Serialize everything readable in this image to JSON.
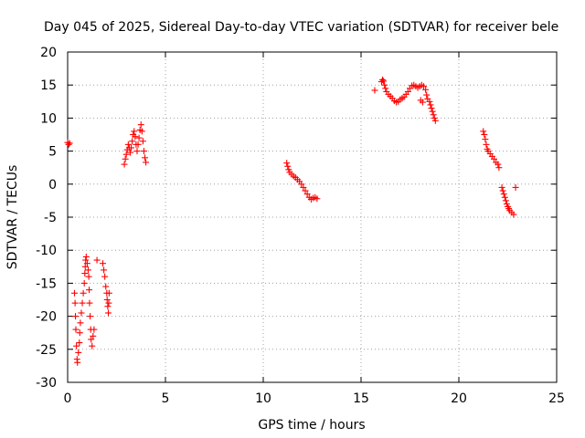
{
  "chart_data": {
    "type": "scatter",
    "title": "Day 045 of 2025, Sidereal Day-to-day VTEC variation (SDTVAR) for receiver bele",
    "xlabel": "GPS time / hours",
    "ylabel": "SDTVAR / TECUs",
    "xlim": [
      0,
      25
    ],
    "ylim": [
      -30,
      20
    ],
    "xticks": [
      0,
      5,
      10,
      15,
      20,
      25
    ],
    "yticks": [
      -30,
      -25,
      -20,
      -15,
      -10,
      -5,
      0,
      5,
      10,
      15,
      20
    ],
    "grid": true,
    "marker": "plus",
    "color": "#ff0000",
    "segments": [
      {
        "name": "seg-00h",
        "points": [
          [
            0.0,
            6.3
          ],
          [
            0.05,
            6.0
          ],
          [
            0.1,
            6.2
          ]
        ]
      },
      {
        "name": "seg-00h-02h",
        "points": [
          [
            0.35,
            -16.5
          ],
          [
            0.38,
            -18.0
          ],
          [
            0.4,
            -20.0
          ],
          [
            0.42,
            -22.0
          ],
          [
            0.45,
            -24.5
          ],
          [
            0.48,
            -26.5
          ],
          [
            0.5,
            -27.0
          ],
          [
            0.55,
            -25.5
          ],
          [
            0.6,
            -24.0
          ],
          [
            0.62,
            -22.5
          ],
          [
            0.65,
            -21.0
          ],
          [
            0.7,
            -19.5
          ],
          [
            0.75,
            -18.0
          ],
          [
            0.8,
            -16.5
          ],
          [
            0.85,
            -15.0
          ],
          [
            0.88,
            -13.5
          ],
          [
            0.9,
            -12.5
          ],
          [
            0.92,
            -11.5
          ],
          [
            0.95,
            -11.0
          ],
          [
            1.0,
            -12.0
          ],
          [
            1.05,
            -13.0
          ],
          [
            1.08,
            -14.0
          ],
          [
            1.1,
            -16.0
          ],
          [
            1.12,
            -18.0
          ],
          [
            1.15,
            -20.0
          ],
          [
            1.18,
            -22.0
          ],
          [
            1.2,
            -23.5
          ],
          [
            1.25,
            -24.5
          ],
          [
            1.3,
            -23.0
          ],
          [
            1.35,
            -22.0
          ],
          [
            1.5,
            -11.5
          ],
          [
            1.8,
            -12.0
          ],
          [
            1.85,
            -13.0
          ],
          [
            1.9,
            -14.0
          ],
          [
            1.95,
            -15.5
          ],
          [
            2.0,
            -16.5
          ],
          [
            2.02,
            -17.5
          ],
          [
            2.05,
            -18.5
          ],
          [
            2.08,
            -19.5
          ],
          [
            2.1,
            -18.0
          ],
          [
            2.12,
            -16.5
          ]
        ]
      },
      {
        "name": "seg-03h",
        "points": [
          [
            2.9,
            3.0
          ],
          [
            2.95,
            3.8
          ],
          [
            3.0,
            4.5
          ],
          [
            3.05,
            5.2
          ],
          [
            3.1,
            6.0
          ],
          [
            3.15,
            5.5
          ],
          [
            3.2,
            4.8
          ],
          [
            3.25,
            5.5
          ],
          [
            3.3,
            6.5
          ],
          [
            3.35,
            7.5
          ],
          [
            3.4,
            8.0
          ],
          [
            3.45,
            7.2
          ],
          [
            3.5,
            6.0
          ],
          [
            3.55,
            5.0
          ],
          [
            3.6,
            6.0
          ],
          [
            3.65,
            7.0
          ],
          [
            3.7,
            8.2
          ],
          [
            3.75,
            9.0
          ],
          [
            3.8,
            8.0
          ],
          [
            3.85,
            6.5
          ],
          [
            3.9,
            5.0
          ],
          [
            3.95,
            4.0
          ],
          [
            4.0,
            3.3
          ]
        ]
      },
      {
        "name": "seg-11h",
        "points": [
          [
            11.2,
            3.2
          ],
          [
            11.25,
            2.7
          ],
          [
            11.3,
            2.2
          ],
          [
            11.35,
            1.8
          ],
          [
            11.45,
            1.5
          ],
          [
            11.55,
            1.2
          ],
          [
            11.65,
            1.0
          ],
          [
            11.75,
            0.7
          ],
          [
            11.85,
            0.4
          ],
          [
            11.95,
            0.0
          ],
          [
            12.05,
            -0.5
          ],
          [
            12.15,
            -1.0
          ],
          [
            12.25,
            -1.5
          ],
          [
            12.35,
            -2.0
          ],
          [
            12.45,
            -2.3
          ],
          [
            12.55,
            -2.1
          ],
          [
            12.65,
            -2.0
          ],
          [
            12.75,
            -2.2
          ]
        ]
      },
      {
        "name": "seg-16h-19h",
        "points": [
          [
            15.7,
            14.2
          ],
          [
            16.05,
            15.5
          ],
          [
            16.1,
            15.8
          ],
          [
            16.15,
            15.6
          ],
          [
            16.2,
            15.0
          ],
          [
            16.25,
            14.5
          ],
          [
            16.3,
            14.0
          ],
          [
            16.4,
            13.6
          ],
          [
            16.5,
            13.3
          ],
          [
            16.6,
            13.0
          ],
          [
            16.7,
            12.6
          ],
          [
            16.8,
            12.4
          ],
          [
            16.9,
            12.5
          ],
          [
            17.0,
            12.8
          ],
          [
            17.1,
            13.0
          ],
          [
            17.2,
            13.2
          ],
          [
            17.3,
            13.6
          ],
          [
            17.4,
            14.0
          ],
          [
            17.5,
            14.5
          ],
          [
            17.6,
            14.9
          ],
          [
            17.7,
            15.0
          ],
          [
            17.8,
            14.8
          ],
          [
            17.9,
            14.6
          ],
          [
            18.0,
            14.8
          ],
          [
            18.1,
            15.0
          ],
          [
            18.2,
            14.8
          ],
          [
            18.3,
            14.3
          ],
          [
            18.35,
            13.5
          ],
          [
            18.4,
            12.9
          ],
          [
            18.5,
            12.5
          ],
          [
            18.55,
            12.0
          ],
          [
            18.6,
            11.5
          ],
          [
            18.65,
            11.0
          ],
          [
            18.7,
            10.5
          ],
          [
            18.75,
            10.0
          ],
          [
            18.8,
            9.6
          ],
          [
            18.05,
            12.7
          ],
          [
            18.15,
            12.4
          ]
        ]
      },
      {
        "name": "seg-21h-23h",
        "points": [
          [
            21.25,
            8.0
          ],
          [
            21.3,
            7.5
          ],
          [
            21.35,
            6.8
          ],
          [
            21.4,
            6.0
          ],
          [
            21.45,
            5.3
          ],
          [
            21.5,
            5.0
          ],
          [
            21.6,
            4.6
          ],
          [
            21.7,
            4.2
          ],
          [
            21.8,
            3.8
          ],
          [
            21.9,
            3.3
          ],
          [
            22.0,
            3.0
          ],
          [
            22.05,
            2.5
          ],
          [
            22.2,
            -0.5
          ],
          [
            22.25,
            -1.0
          ],
          [
            22.3,
            -1.5
          ],
          [
            22.35,
            -2.0
          ],
          [
            22.4,
            -2.5
          ],
          [
            22.45,
            -3.0
          ],
          [
            22.5,
            -3.4
          ],
          [
            22.55,
            -3.7
          ],
          [
            22.6,
            -4.0
          ],
          [
            22.7,
            -4.3
          ],
          [
            22.8,
            -4.6
          ],
          [
            22.9,
            -0.5
          ]
        ]
      }
    ]
  }
}
